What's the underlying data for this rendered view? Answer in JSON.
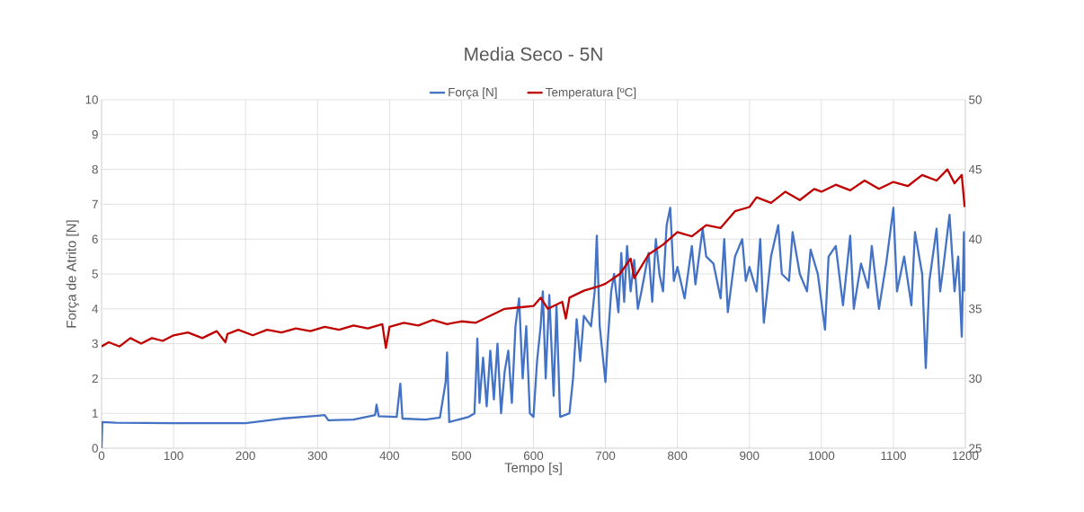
{
  "chart_data": {
    "type": "line",
    "title": "Media Seco - 5N",
    "xlabel": "Tempo [s]",
    "ylabel": "Força de Atrito [N]",
    "xlim": [
      0,
      1200
    ],
    "xticks": [
      0,
      100,
      200,
      300,
      400,
      500,
      600,
      700,
      800,
      900,
      1000,
      1100,
      1200
    ],
    "ylim": [
      0,
      10
    ],
    "yticks": [
      0,
      1,
      2,
      3,
      4,
      5,
      6,
      7,
      8,
      9,
      10
    ],
    "y2lim": [
      25,
      50
    ],
    "y2ticks": [
      25,
      30,
      35,
      40,
      45,
      50
    ],
    "grid": true,
    "legend": "top",
    "series": [
      {
        "name": "Força [N]",
        "color": "#4472c4",
        "x": [
          0,
          1,
          20,
          100,
          200,
          250,
          300,
          310,
          315,
          350,
          380,
          382,
          385,
          410,
          415,
          418,
          450,
          470,
          478,
          480,
          483,
          510,
          518,
          520,
          522,
          525,
          530,
          535,
          540,
          545,
          550,
          555,
          560,
          565,
          570,
          575,
          580,
          585,
          590,
          595,
          600,
          605,
          610,
          613,
          617,
          622,
          628,
          632,
          637,
          650,
          655,
          660,
          665,
          670,
          680,
          685,
          688,
          692,
          697,
          700,
          703,
          708,
          712,
          718,
          722,
          726,
          730,
          735,
          740,
          745,
          750,
          760,
          765,
          770,
          775,
          780,
          785,
          790,
          795,
          800,
          810,
          820,
          825,
          835,
          840,
          850,
          860,
          865,
          870,
          880,
          890,
          895,
          900,
          910,
          915,
          920,
          930,
          940,
          945,
          955,
          960,
          970,
          980,
          985,
          995,
          1005,
          1010,
          1020,
          1030,
          1040,
          1045,
          1055,
          1065,
          1070,
          1080,
          1090,
          1100,
          1105,
          1115,
          1125,
          1130,
          1140,
          1145,
          1150,
          1160,
          1165,
          1170,
          1178,
          1185,
          1190,
          1195,
          1198,
          1199
        ],
        "values": [
          0.0,
          0.75,
          0.73,
          0.72,
          0.72,
          0.85,
          0.93,
          0.95,
          0.8,
          0.82,
          0.95,
          1.25,
          0.92,
          0.9,
          1.85,
          0.85,
          0.82,
          0.88,
          1.9,
          2.75,
          0.75,
          0.9,
          1.0,
          2.0,
          3.15,
          1.3,
          2.6,
          1.2,
          2.8,
          1.4,
          3.0,
          1.0,
          2.2,
          2.8,
          1.3,
          3.5,
          4.3,
          2.0,
          3.5,
          1.0,
          0.9,
          2.5,
          3.5,
          4.5,
          2.0,
          4.4,
          1.5,
          4.1,
          0.9,
          1.0,
          2.0,
          3.7,
          2.5,
          3.8,
          3.5,
          4.5,
          6.1,
          3.5,
          2.5,
          1.9,
          3.0,
          4.5,
          5.0,
          3.9,
          5.6,
          4.2,
          5.8,
          4.5,
          5.4,
          4.0,
          4.5,
          5.6,
          4.2,
          6.0,
          5.0,
          4.5,
          6.4,
          6.9,
          4.8,
          5.2,
          4.3,
          5.8,
          4.7,
          6.3,
          5.5,
          5.3,
          4.3,
          6.0,
          3.9,
          5.5,
          6.0,
          4.8,
          5.2,
          4.5,
          6.0,
          3.6,
          5.5,
          6.4,
          5.0,
          4.8,
          6.2,
          5.0,
          4.5,
          5.7,
          5.0,
          3.4,
          5.5,
          5.8,
          4.1,
          6.1,
          4.0,
          5.3,
          4.6,
          5.8,
          4.0,
          5.3,
          6.9,
          4.5,
          5.5,
          4.1,
          6.2,
          5.0,
          2.3,
          4.8,
          6.3,
          4.5,
          5.3,
          6.7,
          4.5,
          5.5,
          3.2,
          6.2,
          4.5
        ]
      },
      {
        "name": "Temperatura [ºC]",
        "color": "#c00000",
        "axis": "y2",
        "x": [
          0,
          10,
          25,
          40,
          55,
          70,
          85,
          100,
          120,
          140,
          160,
          172,
          175,
          190,
          210,
          230,
          250,
          270,
          290,
          310,
          330,
          350,
          370,
          390,
          395,
          400,
          420,
          440,
          460,
          480,
          500,
          520,
          540,
          560,
          580,
          600,
          610,
          620,
          640,
          645,
          650,
          670,
          690,
          700,
          720,
          735,
          740,
          760,
          780,
          800,
          820,
          840,
          860,
          880,
          900,
          910,
          930,
          950,
          970,
          990,
          1000,
          1020,
          1040,
          1060,
          1080,
          1100,
          1120,
          1140,
          1160,
          1175,
          1185,
          1195,
          1199
        ],
        "values": [
          32.3,
          32.6,
          32.3,
          32.9,
          32.5,
          32.9,
          32.7,
          33.1,
          33.3,
          32.9,
          33.4,
          32.6,
          33.2,
          33.5,
          33.1,
          33.5,
          33.3,
          33.6,
          33.4,
          33.7,
          33.5,
          33.8,
          33.6,
          33.9,
          32.2,
          33.7,
          34.0,
          33.8,
          34.2,
          33.9,
          34.1,
          34.0,
          34.5,
          35.0,
          35.1,
          35.2,
          35.8,
          35.0,
          35.5,
          34.3,
          35.8,
          36.3,
          36.6,
          36.8,
          37.5,
          38.6,
          37.2,
          38.9,
          39.6,
          40.5,
          40.2,
          41.0,
          40.8,
          42.0,
          42.3,
          43.0,
          42.6,
          43.4,
          42.8,
          43.6,
          43.4,
          43.9,
          43.5,
          44.2,
          43.6,
          44.1,
          43.8,
          44.6,
          44.2,
          45.0,
          44.0,
          44.6,
          42.3
        ]
      }
    ]
  }
}
